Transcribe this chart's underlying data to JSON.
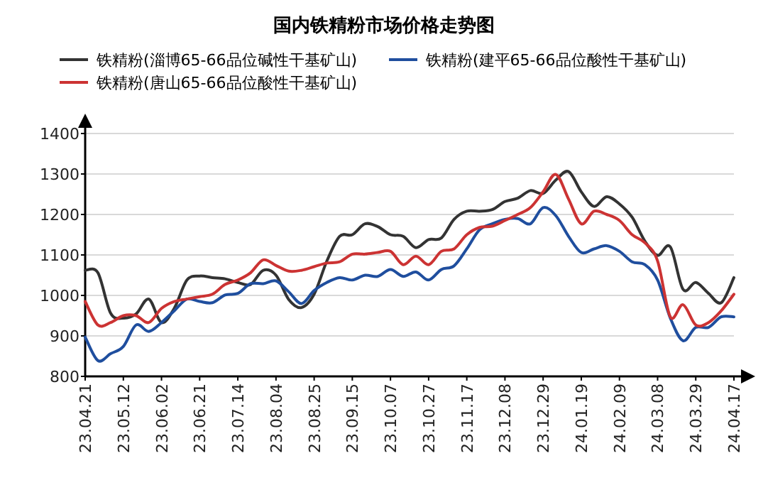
{
  "chart_data": {
    "type": "line",
    "title": "国内铁精粉市场价格走势图",
    "categories": [
      "23.04.21",
      null,
      null,
      "23.05.12",
      null,
      null,
      "23.06.02",
      null,
      null,
      "23.06.21",
      null,
      null,
      "23.07.14",
      null,
      null,
      "23.08.04",
      null,
      null,
      "23.08.25",
      null,
      null,
      "23.09.15",
      null,
      null,
      "23.10.07",
      null,
      null,
      "23.10.27",
      null,
      null,
      "23.11.17",
      null,
      null,
      "23.12.08",
      null,
      null,
      "23.12.29",
      null,
      null,
      "24.01.19",
      null,
      null,
      "24.02.09",
      null,
      null,
      "24.03.08",
      null,
      null,
      "24.03.29",
      null,
      null,
      "24.04.17"
    ],
    "series": [
      {
        "name": "铁精粉(淄博65-66品位碱性干基矿山)",
        "color": "#333333",
        "values": [
          1062,
          1056,
          956,
          944,
          954,
          991,
          933,
          968,
          1038,
          1048,
          1044,
          1041,
          1032,
          1027,
          1062,
          1050,
          990,
          970,
          1003,
          1085,
          1146,
          1150,
          1177,
          1170,
          1150,
          1146,
          1118,
          1138,
          1142,
          1188,
          1208,
          1208,
          1212,
          1232,
          1240,
          1259,
          1252,
          1285,
          1306,
          1256,
          1220,
          1244,
          1226,
          1193,
          1134,
          1099,
          1120,
          1015,
          1032,
          1005,
          982,
          1044
        ]
      },
      {
        "name": "铁精粉(建平65-66品位酸性干基矿山)",
        "color": "#1f4e9e",
        "values": [
          897,
          839,
          856,
          874,
          927,
          911,
          933,
          962,
          991,
          985,
          982,
          1001,
          1005,
          1029,
          1029,
          1036,
          1009,
          980,
          1012,
          1032,
          1044,
          1038,
          1050,
          1047,
          1064,
          1047,
          1058,
          1038,
          1064,
          1073,
          1115,
          1162,
          1177,
          1188,
          1190,
          1177,
          1217,
          1197,
          1146,
          1106,
          1115,
          1123,
          1109,
          1083,
          1076,
          1038,
          944,
          888,
          921,
          921,
          947,
          947
        ]
      },
      {
        "name": "铁精粉(唐山65-66品位酸性干基矿山)",
        "color": "#cc3333",
        "values": [
          985,
          927,
          933,
          950,
          950,
          933,
          968,
          985,
          991,
          997,
          1003,
          1027,
          1038,
          1056,
          1088,
          1074,
          1060,
          1062,
          1071,
          1080,
          1083,
          1102,
          1102,
          1106,
          1109,
          1076,
          1097,
          1076,
          1109,
          1115,
          1150,
          1168,
          1171,
          1185,
          1200,
          1217,
          1256,
          1299,
          1238,
          1177,
          1208,
          1200,
          1185,
          1150,
          1130,
          1085,
          947,
          977,
          927,
          933,
          962,
          1003
        ]
      }
    ],
    "ylim": [
      800,
      1400
    ],
    "yticks": [
      800,
      900,
      1000,
      1100,
      1200,
      1300,
      1400
    ],
    "grid": "y",
    "legend": "top"
  }
}
